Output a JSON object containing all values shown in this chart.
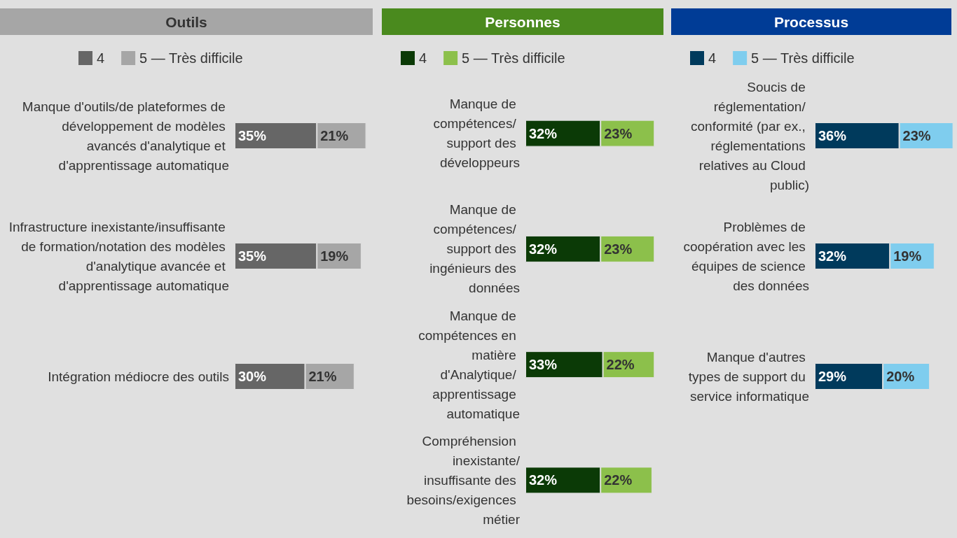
{
  "chart_data": [
    {
      "type": "bar",
      "title": "Outils",
      "orientation": "horizontal",
      "stacked": true,
      "legend": "top",
      "categories": [
        "Manque d'outils/de plateformes de développement de modèles avancés d'analytique et d'apprentissage automatique",
        "Infrastructure inexistante/insuffisante de formation/notation des modèles d'analytique avancée et d'apprentissage automatique",
        "Intégration médiocre des outils"
      ],
      "series": [
        {
          "name": "4",
          "color": "#666666",
          "values": [
            35,
            35,
            30
          ],
          "value_labels": [
            "35%",
            "35%",
            "30%"
          ]
        },
        {
          "name": "5 — Très difficile",
          "color": "#a6a6a6",
          "values": [
            21,
            19,
            21
          ],
          "value_labels": [
            "21%",
            "19%",
            "21%"
          ]
        }
      ]
    },
    {
      "type": "bar",
      "title": "Personnes",
      "orientation": "horizontal",
      "stacked": true,
      "legend": "top",
      "categories": [
        "Manque de compétences/ support des développeurs",
        "Manque de compétences/ support des ingénieurs des données",
        "Manque de compétences en matière d'Analytique/ apprentissage automatique",
        "Compréhension inexistante/insuffisante des besoins/exigences métier"
      ],
      "series": [
        {
          "name": "4",
          "color": "#0b3a06",
          "values": [
            32,
            32,
            33,
            32
          ],
          "value_labels": [
            "32%",
            "32%",
            "33%",
            "32%"
          ]
        },
        {
          "name": "5 — Très difficile",
          "color": "#8cc04b",
          "values": [
            23,
            23,
            22,
            22
          ],
          "value_labels": [
            "23%",
            "23%",
            "22%",
            "22%"
          ]
        }
      ]
    },
    {
      "type": "bar",
      "title": "Processus",
      "orientation": "horizontal",
      "stacked": true,
      "legend": "top",
      "categories": [
        "Soucis de réglementation/ conformité (par ex., réglementations relatives au Cloud public)",
        "Problèmes de coopération avec les équipes de science des données",
        "Manque d'autres types de support du service informatique"
      ],
      "series": [
        {
          "name": "4",
          "color": "#003a5c",
          "values": [
            36,
            32,
            29
          ],
          "value_labels": [
            "36%",
            "32%",
            "29%"
          ]
        },
        {
          "name": "5 — Très difficile",
          "color": "#7fcdee",
          "values": [
            23,
            19,
            20
          ],
          "value_labels": [
            "23%",
            "19%",
            "20%"
          ]
        }
      ]
    }
  ]
}
